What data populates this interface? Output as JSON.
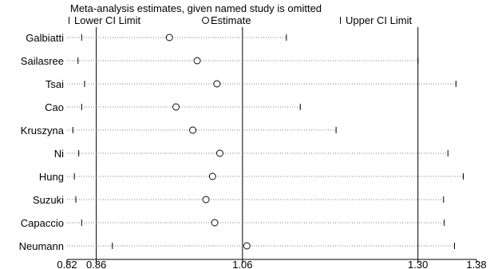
{
  "chart_data": {
    "type": "scatter",
    "title": "Meta-analysis estimates, given named study is omitted",
    "legend": {
      "placement": "top",
      "items": [
        {
          "label": "Lower CI Limit",
          "icon": "bar-icon"
        },
        {
          "label": "Estimate",
          "icon": "circle-icon"
        },
        {
          "label": "Upper CI Limit",
          "icon": "bar-icon"
        }
      ]
    },
    "categories": [
      "Galbiatti",
      "Sailasree",
      "Tsai",
      "Cao",
      "Kruszyna",
      "Ni",
      "Hung",
      "Suzuki",
      "Capaccio",
      "Neumann"
    ],
    "estimate": [
      0.96,
      0.998,
      1.025,
      0.969,
      0.992,
      1.029,
      1.019,
      1.01,
      1.022,
      1.066
    ],
    "lower": [
      0.84,
      0.835,
      0.844,
      0.84,
      0.828,
      0.836,
      0.83,
      0.832,
      0.84,
      0.882
    ],
    "upper": [
      1.12,
      1.3,
      1.352,
      1.139,
      1.188,
      1.341,
      1.362,
      1.335,
      1.336,
      1.35
    ],
    "xticks": [
      "0.82",
      "0.86",
      "1.06",
      "1.30",
      "1.38"
    ],
    "xtick_values": [
      0.82,
      0.86,
      1.06,
      1.3,
      1.38
    ],
    "reference_lines": [
      0.86,
      1.06,
      1.3
    ],
    "xlim": [
      0.82,
      1.38
    ],
    "grid": false,
    "xlabel": "",
    "ylabel": ""
  }
}
